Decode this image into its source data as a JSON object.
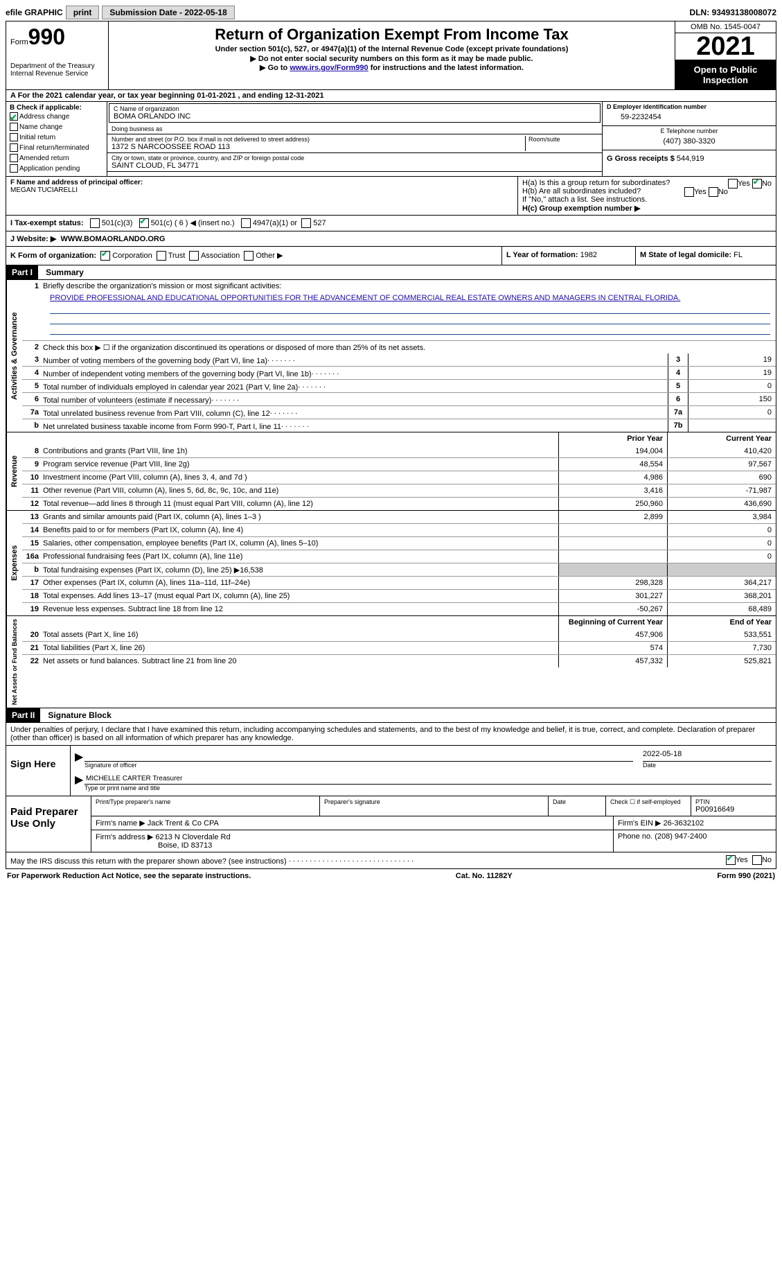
{
  "topbar": {
    "efile": "efile GRAPHIC",
    "print": "print",
    "submission": "Submission Date - 2022-05-18",
    "dln_label": "DLN:",
    "dln": "93493138008072"
  },
  "header": {
    "form_word": "Form",
    "form_num": "990",
    "dept": "Department of the Treasury",
    "irs": "Internal Revenue Service",
    "title": "Return of Organization Exempt From Income Tax",
    "sub1": "Under section 501(c), 527, or 4947(a)(1) of the Internal Revenue Code (except private foundations)",
    "sub2": "▶ Do not enter social security numbers on this form as it may be made public.",
    "sub3_pre": "▶ Go to ",
    "sub3_link": "www.irs.gov/Form990",
    "sub3_post": " for instructions and the latest information.",
    "omb": "OMB No. 1545-0047",
    "year": "2021",
    "open": "Open to Public Inspection"
  },
  "cal": {
    "text_pre": "A For the 2021 calendar year, or tax year beginning ",
    "begin": "01-01-2021",
    "mid": " , and ending ",
    "end": "12-31-2021"
  },
  "colB": {
    "hdr": "B Check if applicable:",
    "items": [
      "Address change",
      "Name change",
      "Initial return",
      "Final return/terminated",
      "Amended return",
      "Application pending"
    ],
    "checked": [
      true,
      false,
      false,
      false,
      false,
      false
    ]
  },
  "org": {
    "name_label": "C Name of organization",
    "name": "BOMA ORLANDO INC",
    "dba_label": "Doing business as",
    "dba": "",
    "addr_label": "Number and street (or P.O. box if mail is not delivered to street address)",
    "room_label": "Room/suite",
    "addr": "1372 S NARCOOSSEE ROAD 113",
    "city_label": "City or town, state or province, country, and ZIP or foreign postal code",
    "city": "SAINT CLOUD, FL  34771",
    "ein_label": "D Employer identification number",
    "ein": "59-2232454",
    "phone_label": "E Telephone number",
    "phone": "(407) 380-3320",
    "gross_label": "G Gross receipts $",
    "gross": "544,919"
  },
  "officer": {
    "label": "F Name and address of principal officer:",
    "name": "MEGAN TUCIARELLI"
  },
  "groupH": {
    "ha": "H(a)  Is this a group return for subordinates?",
    "hb": "H(b)  Are all subordinates included?",
    "hb_note": "If \"No,\" attach a list. See instructions.",
    "hc": "H(c)  Group exemption number ▶",
    "yes": "Yes",
    "no": "No"
  },
  "taxExempt": {
    "label": "I   Tax-exempt status:",
    "c3": "501(c)(3)",
    "c_other": "501(c) ( 6 ) ◀ (insert no.)",
    "4947": "4947(a)(1) or",
    "527": "527"
  },
  "website": {
    "label": "J   Website: ▶",
    "val": "WWW.BOMAORLANDO.ORG"
  },
  "formOrg": {
    "label": "K Form of organization:",
    "corp": "Corporation",
    "trust": "Trust",
    "assoc": "Association",
    "other": "Other ▶",
    "year_label": "L Year of formation:",
    "year": "1982",
    "state_label": "M State of legal domicile:",
    "state": "FL"
  },
  "parts": {
    "p1": "Part I",
    "p1_title": "Summary",
    "p2": "Part II",
    "p2_title": "Signature Block"
  },
  "summary": {
    "sec1_label": "Activities & Governance",
    "sec2_label": "Revenue",
    "sec3_label": "Expenses",
    "sec4_label": "Net Assets or Fund Balances",
    "line1": "Briefly describe the organization's mission or most significant activities:",
    "mission": "PROVIDE PROFESSIONAL AND EDUCATIONAL OPPORTUNITIES FOR THE ADVANCEMENT OF COMMERCIAL REAL ESTATE OWNERS AND MANAGERS IN CENTRAL FLORIDA.",
    "line2": "Check this box ▶ ☐ if the organization discontinued its operations or disposed of more than 25% of its net assets.",
    "lines_ag": [
      {
        "n": "3",
        "d": "Number of voting members of the governing body (Part VI, line 1a)",
        "box": "3",
        "v": "19"
      },
      {
        "n": "4",
        "d": "Number of independent voting members of the governing body (Part VI, line 1b)",
        "box": "4",
        "v": "19"
      },
      {
        "n": "5",
        "d": "Total number of individuals employed in calendar year 2021 (Part V, line 2a)",
        "box": "5",
        "v": "0"
      },
      {
        "n": "6",
        "d": "Total number of volunteers (estimate if necessary)",
        "box": "6",
        "v": "150"
      },
      {
        "n": "7a",
        "d": "Total unrelated business revenue from Part VIII, column (C), line 12",
        "box": "7a",
        "v": "0"
      },
      {
        "n": "b",
        "d": "Net unrelated business taxable income from Form 990-T, Part I, line 11",
        "box": "7b",
        "v": ""
      }
    ],
    "prior_hdr": "Prior Year",
    "curr_hdr": "Current Year",
    "rev": [
      {
        "n": "8",
        "d": "Contributions and grants (Part VIII, line 1h)",
        "p": "194,004",
        "c": "410,420"
      },
      {
        "n": "9",
        "d": "Program service revenue (Part VIII, line 2g)",
        "p": "48,554",
        "c": "97,567"
      },
      {
        "n": "10",
        "d": "Investment income (Part VIII, column (A), lines 3, 4, and 7d )",
        "p": "4,986",
        "c": "690"
      },
      {
        "n": "11",
        "d": "Other revenue (Part VIII, column (A), lines 5, 6d, 8c, 9c, 10c, and 11e)",
        "p": "3,416",
        "c": "-71,987"
      },
      {
        "n": "12",
        "d": "Total revenue—add lines 8 through 11 (must equal Part VIII, column (A), line 12)",
        "p": "250,960",
        "c": "436,690"
      }
    ],
    "exp": [
      {
        "n": "13",
        "d": "Grants and similar amounts paid (Part IX, column (A), lines 1–3 )",
        "p": "2,899",
        "c": "3,984"
      },
      {
        "n": "14",
        "d": "Benefits paid to or for members (Part IX, column (A), line 4)",
        "p": "",
        "c": "0"
      },
      {
        "n": "15",
        "d": "Salaries, other compensation, employee benefits (Part IX, column (A), lines 5–10)",
        "p": "",
        "c": "0"
      },
      {
        "n": "16a",
        "d": "Professional fundraising fees (Part IX, column (A), line 11e)",
        "p": "",
        "c": "0"
      },
      {
        "n": "b",
        "d": "Total fundraising expenses (Part IX, column (D), line 25) ▶16,538",
        "p": "shade",
        "c": "shade"
      },
      {
        "n": "17",
        "d": "Other expenses (Part IX, column (A), lines 11a–11d, 11f–24e)",
        "p": "298,328",
        "c": "364,217"
      },
      {
        "n": "18",
        "d": "Total expenses. Add lines 13–17 (must equal Part IX, column (A), line 25)",
        "p": "301,227",
        "c": "368,201"
      },
      {
        "n": "19",
        "d": "Revenue less expenses. Subtract line 18 from line 12",
        "p": "-50,267",
        "c": "68,489"
      }
    ],
    "begin_hdr": "Beginning of Current Year",
    "end_hdr": "End of Year",
    "net": [
      {
        "n": "20",
        "d": "Total assets (Part X, line 16)",
        "p": "457,906",
        "c": "533,551"
      },
      {
        "n": "21",
        "d": "Total liabilities (Part X, line 26)",
        "p": "574",
        "c": "7,730"
      },
      {
        "n": "22",
        "d": "Net assets or fund balances. Subtract line 21 from line 20",
        "p": "457,332",
        "c": "525,821"
      }
    ]
  },
  "sig": {
    "penalties": "Under penalties of perjury, I declare that I have examined this return, including accompanying schedules and statements, and to the best of my knowledge and belief, it is true, correct, and complete. Declaration of preparer (other than officer) is based on all information of which preparer has any knowledge.",
    "sign_here": "Sign Here",
    "sig_officer": "Signature of officer",
    "date": "Date",
    "sig_date": "2022-05-18",
    "officer_name": "MICHELLE CARTER  Treasurer",
    "type_name": "Type or print name and title",
    "paid": "Paid Preparer Use Only",
    "print_name": "Print/Type preparer's name",
    "prep_sig": "Preparer's signature",
    "check_self": "Check ☐ if self-employed",
    "ptin_label": "PTIN",
    "ptin": "P00916649",
    "firm_name_label": "Firm's name    ▶",
    "firm_name": "Jack Trent & Co CPA",
    "firm_ein_label": "Firm's EIN ▶",
    "firm_ein": "26-3632102",
    "firm_addr_label": "Firm's address ▶",
    "firm_addr1": "6213 N Cloverdale Rd",
    "firm_addr2": "Boise, ID  83713",
    "firm_phone_label": "Phone no.",
    "firm_phone": "(208) 947-2400",
    "discuss": "May the IRS discuss this return with the preparer shown above? (see instructions)"
  },
  "footer": {
    "left": "For Paperwork Reduction Act Notice, see the separate instructions.",
    "mid": "Cat. No. 11282Y",
    "right": "Form 990 (2021)"
  }
}
